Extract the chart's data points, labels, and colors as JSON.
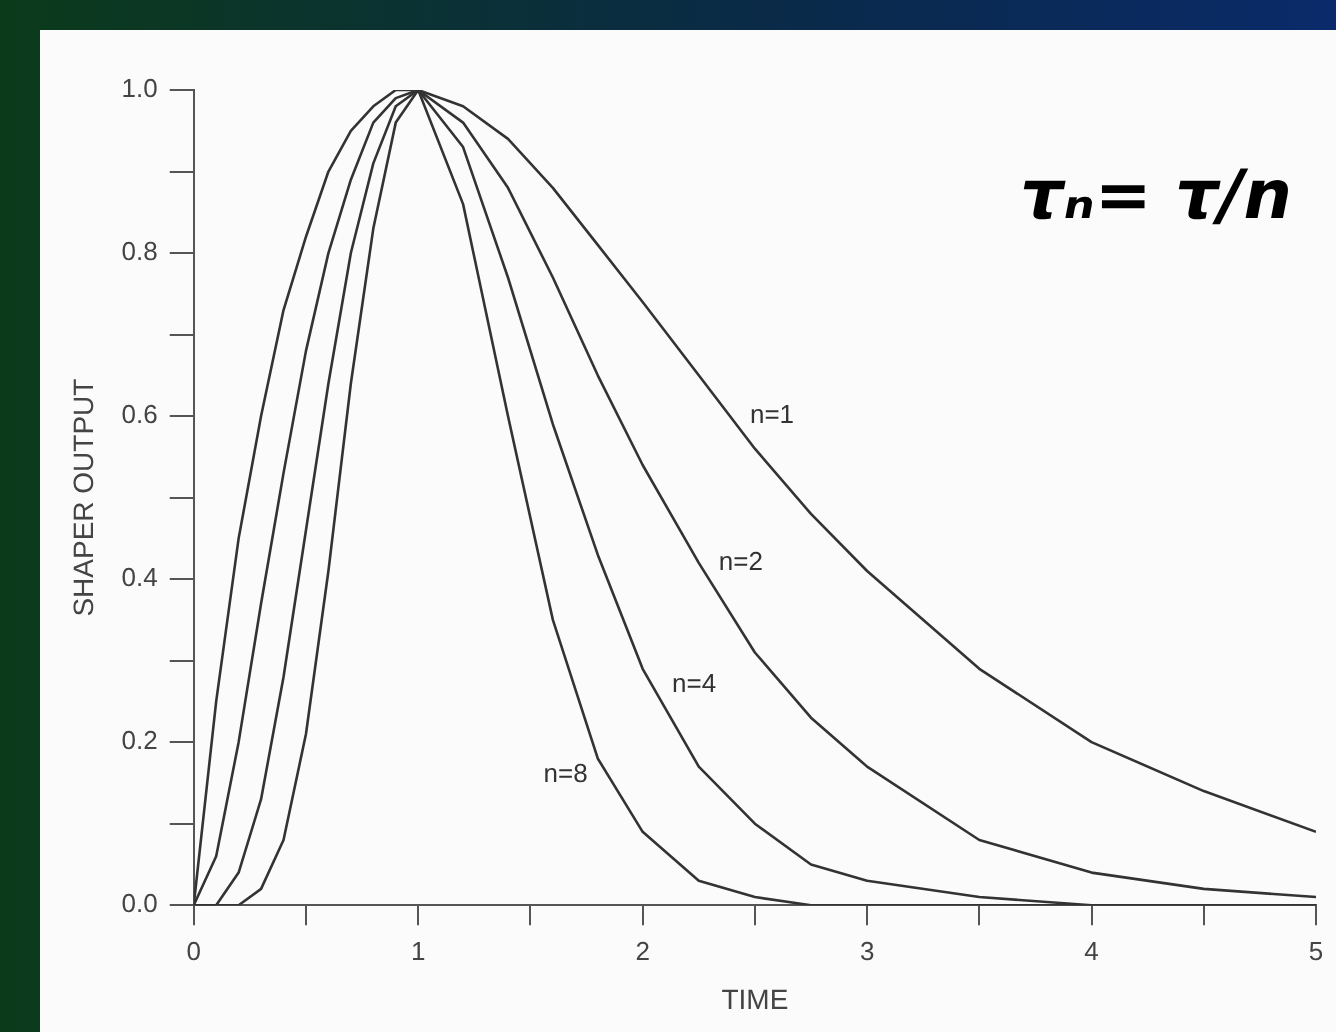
{
  "chart_data": {
    "type": "line",
    "xlabel": "TIME",
    "ylabel": "SHAPER OUTPUT",
    "x": [
      0,
      0.1,
      0.2,
      0.3,
      0.4,
      0.5,
      0.6,
      0.7,
      0.8,
      0.9,
      1,
      1.2,
      1.4,
      1.6,
      1.8,
      2,
      2.25,
      2.5,
      2.75,
      3,
      3.5,
      4,
      4.5,
      5
    ],
    "series": [
      {
        "name": "n=1",
        "color": "#333333",
        "values": [
          0,
          0.25,
          0.45,
          0.6,
          0.73,
          0.82,
          0.9,
          0.95,
          0.98,
          1,
          1,
          0.98,
          0.94,
          0.88,
          0.81,
          0.74,
          0.65,
          0.56,
          0.48,
          0.41,
          0.29,
          0.2,
          0.14,
          0.09
        ]
      },
      {
        "name": "n=2",
        "color": "#333333",
        "values": [
          0,
          0.06,
          0.2,
          0.37,
          0.53,
          0.68,
          0.8,
          0.89,
          0.96,
          0.99,
          1,
          0.96,
          0.88,
          0.77,
          0.65,
          0.54,
          0.42,
          0.31,
          0.23,
          0.17,
          0.08,
          0.04,
          0.02,
          0.01
        ]
      },
      {
        "name": "n=4",
        "color": "#333333",
        "values": [
          0,
          0,
          0.04,
          0.13,
          0.28,
          0.46,
          0.64,
          0.8,
          0.91,
          0.98,
          1,
          0.93,
          0.77,
          0.59,
          0.43,
          0.29,
          0.17,
          0.1,
          0.05,
          0.03,
          0.01,
          0,
          0,
          0
        ]
      },
      {
        "name": "n=8",
        "color": "#333333",
        "values": [
          0,
          0,
          0,
          0.02,
          0.08,
          0.21,
          0.41,
          0.64,
          0.83,
          0.96,
          1,
          0.86,
          0.6,
          0.35,
          0.18,
          0.09,
          0.03,
          0.01,
          0,
          0,
          0,
          0,
          0,
          0
        ]
      }
    ],
    "xlim": [
      0,
      5
    ],
    "ylim": [
      0,
      1
    ],
    "xticks": [
      0,
      {
        "value": 0.5,
        "label": null
      },
      1,
      {
        "value": 1.5,
        "label": null
      },
      2,
      {
        "value": 2.5,
        "label": null
      },
      3,
      {
        "value": 3.5,
        "label": null
      },
      4,
      {
        "value": 4.5,
        "label": null
      },
      5
    ],
    "yticks": [
      {
        "value": 0,
        "label": "0.0"
      },
      {
        "value": 0.1,
        "label": null
      },
      {
        "value": 0.2,
        "label": "0.2"
      },
      {
        "value": 0.3,
        "label": null
      },
      {
        "value": 0.4,
        "label": "0.4"
      },
      {
        "value": 0.5,
        "label": null
      },
      {
        "value": 0.6,
        "label": "0.6"
      },
      {
        "value": 0.7,
        "label": null
      },
      {
        "value": 0.8,
        "label": "0.8"
      },
      {
        "value": 0.9,
        "label": null
      },
      {
        "value": 1,
        "label": "1.0"
      }
    ],
    "grid": false,
    "legend": false,
    "marker": "none",
    "line_style": "solid",
    "annotations": [
      "τₙ= τ/n"
    ]
  }
}
